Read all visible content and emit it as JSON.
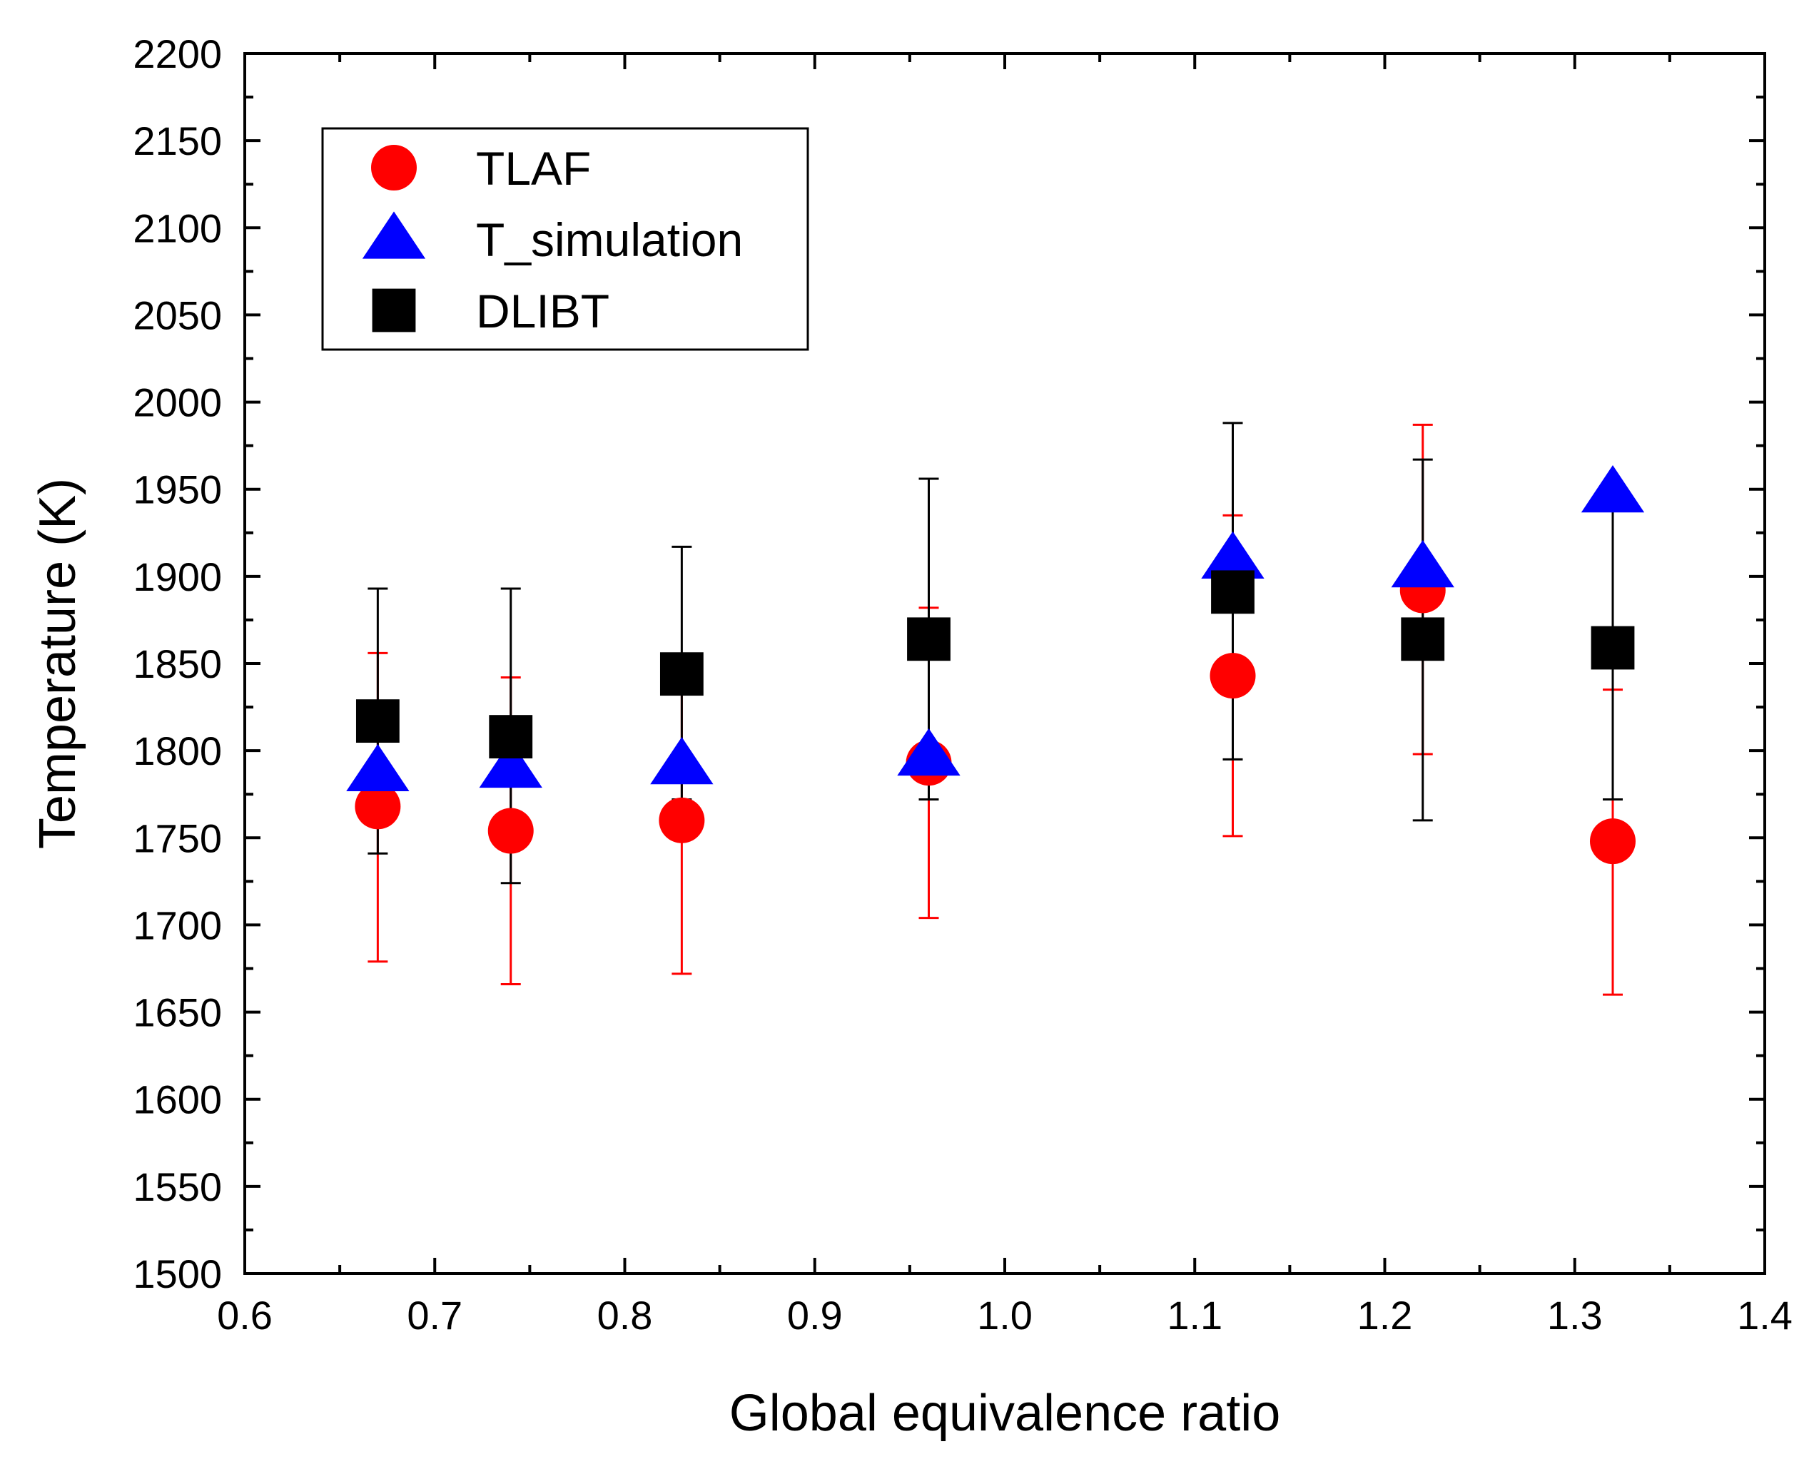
{
  "chart_data": {
    "type": "scatter",
    "title": "",
    "xlabel": "Global equivalence ratio",
    "ylabel": "Temperature (K)",
    "xlim": [
      0.6,
      1.4
    ],
    "ylim": [
      1500,
      2200
    ],
    "x_ticks": [
      "0.6",
      "0.7",
      "0.8",
      "0.9",
      "1.0",
      "1.1",
      "1.2",
      "1.3",
      "1.4"
    ],
    "y_ticks": [
      "1500",
      "1550",
      "1600",
      "1650",
      "1700",
      "1750",
      "1800",
      "1850",
      "1900",
      "1950",
      "2000",
      "2050",
      "2100",
      "2150",
      "2200"
    ],
    "legend_position": "top-left",
    "series": [
      {
        "name": "TLAF",
        "marker": "circle",
        "color": "#ff0000",
        "error_color": "#ff0000",
        "points": [
          {
            "x": 0.67,
            "y": 1768,
            "err_low": 1679,
            "err_high": 1856
          },
          {
            "x": 0.74,
            "y": 1754,
            "err_low": 1666,
            "err_high": 1842
          },
          {
            "x": 0.83,
            "y": 1760,
            "err_low": 1672,
            "err_high": 1848
          },
          {
            "x": 0.96,
            "y": 1793,
            "err_low": 1704,
            "err_high": 1882
          },
          {
            "x": 1.12,
            "y": 1843,
            "err_low": 1751,
            "err_high": 1935
          },
          {
            "x": 1.22,
            "y": 1892,
            "err_low": 1798,
            "err_high": 1987
          },
          {
            "x": 1.32,
            "y": 1748,
            "err_low": 1660,
            "err_high": 1835
          }
        ]
      },
      {
        "name": "T_simulation",
        "marker": "triangle",
        "color": "#0000ff",
        "points": [
          {
            "x": 0.67,
            "y": 1788
          },
          {
            "x": 0.74,
            "y": 1790
          },
          {
            "x": 0.83,
            "y": 1792
          },
          {
            "x": 0.96,
            "y": 1797
          },
          {
            "x": 1.12,
            "y": 1910
          },
          {
            "x": 1.22,
            "y": 1905
          },
          {
            "x": 1.32,
            "y": 1948
          }
        ]
      },
      {
        "name": "DLIBT",
        "marker": "square",
        "color": "#000000",
        "error_color": "#000000",
        "points": [
          {
            "x": 0.67,
            "y": 1817,
            "err_low": 1741,
            "err_high": 1893
          },
          {
            "x": 0.74,
            "y": 1808,
            "err_low": 1724,
            "err_high": 1893
          },
          {
            "x": 0.83,
            "y": 1844,
            "err_low": 1772,
            "err_high": 1917
          },
          {
            "x": 0.96,
            "y": 1864,
            "err_low": 1772,
            "err_high": 1956
          },
          {
            "x": 1.12,
            "y": 1891,
            "err_low": 1795,
            "err_high": 1988
          },
          {
            "x": 1.22,
            "y": 1864,
            "err_low": 1760,
            "err_high": 1967
          },
          {
            "x": 1.32,
            "y": 1859,
            "err_low": 1772,
            "err_high": 1946
          }
        ]
      }
    ]
  }
}
